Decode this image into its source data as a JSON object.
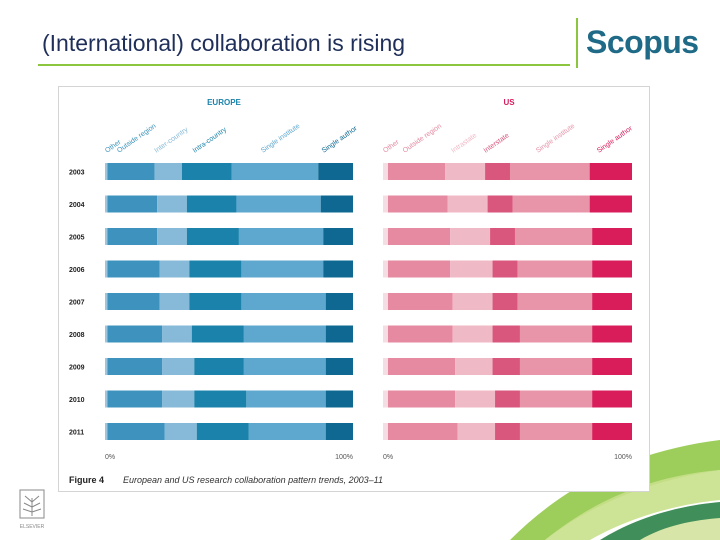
{
  "slide": {
    "title": "(International) collaboration is rising",
    "logo": "Scopus",
    "publisher_logo": "ELSEVIER"
  },
  "colors": {
    "europe": [
      "#9ec5de",
      "#3d93bd",
      "#87bad8",
      "#1b83ab",
      "#5ea7cf",
      "#0e6891"
    ],
    "us": [
      "#f4dde3",
      "#e58aa1",
      "#f0b9c6",
      "#d9567c",
      "#e895aa",
      "#d91d5b"
    ],
    "accent_green": "#8cc63f",
    "title_color": "#1f2f5a",
    "logo_color": "#1f6a86"
  },
  "chart_data": [
    {
      "type": "bar",
      "stacked": true,
      "orientation": "horizontal",
      "title": "EUROPE",
      "categories": [
        "2003",
        "2004",
        "2005",
        "2006",
        "2007",
        "2008",
        "2009",
        "2010",
        "2011"
      ],
      "series": [
        {
          "name": "Other",
          "values": [
            1,
            1,
            1,
            1,
            1,
            1,
            1,
            1,
            1
          ]
        },
        {
          "name": "Outside region",
          "values": [
            19,
            20,
            20,
            21,
            21,
            22,
            22,
            22,
            23
          ]
        },
        {
          "name": "Inter-country",
          "values": [
            11,
            12,
            12,
            12,
            12,
            12,
            13,
            13,
            13
          ]
        },
        {
          "name": "Intra-country",
          "values": [
            20,
            20,
            21,
            21,
            21,
            21,
            20,
            21,
            21
          ]
        },
        {
          "name": "Single institute",
          "values": [
            35,
            34,
            34,
            33,
            34,
            33,
            33,
            32,
            31
          ]
        },
        {
          "name": "Single author",
          "values": [
            14,
            13,
            12,
            12,
            11,
            11,
            11,
            11,
            11
          ]
        }
      ],
      "xlim": [
        0,
        100
      ],
      "x_tick_labels": [
        "0%",
        "100%"
      ]
    },
    {
      "type": "bar",
      "stacked": true,
      "orientation": "horizontal",
      "title": "US",
      "categories": [
        "2003",
        "2004",
        "2005",
        "2006",
        "2007",
        "2008",
        "2009",
        "2010",
        "2011"
      ],
      "series": [
        {
          "name": "Other",
          "values": [
            2,
            2,
            2,
            2,
            2,
            2,
            2,
            2,
            2
          ]
        },
        {
          "name": "Outside region",
          "values": [
            23,
            24,
            25,
            25,
            26,
            26,
            27,
            27,
            28
          ]
        },
        {
          "name": "Intrastate",
          "values": [
            16,
            16,
            16,
            17,
            16,
            16,
            15,
            16,
            15
          ]
        },
        {
          "name": "Interstate",
          "values": [
            10,
            10,
            10,
            10,
            10,
            11,
            11,
            10,
            10
          ]
        },
        {
          "name": "Single institute",
          "values": [
            32,
            31,
            31,
            30,
            30,
            29,
            29,
            29,
            29
          ]
        },
        {
          "name": "Single author",
          "values": [
            17,
            17,
            16,
            16,
            16,
            16,
            16,
            16,
            16
          ]
        }
      ],
      "xlim": [
        0,
        100
      ],
      "x_tick_labels": [
        "0%",
        "100%"
      ]
    }
  ],
  "figure": {
    "label": "Figure 4",
    "caption": "European and US research collaboration pattern trends, 2003–11"
  }
}
